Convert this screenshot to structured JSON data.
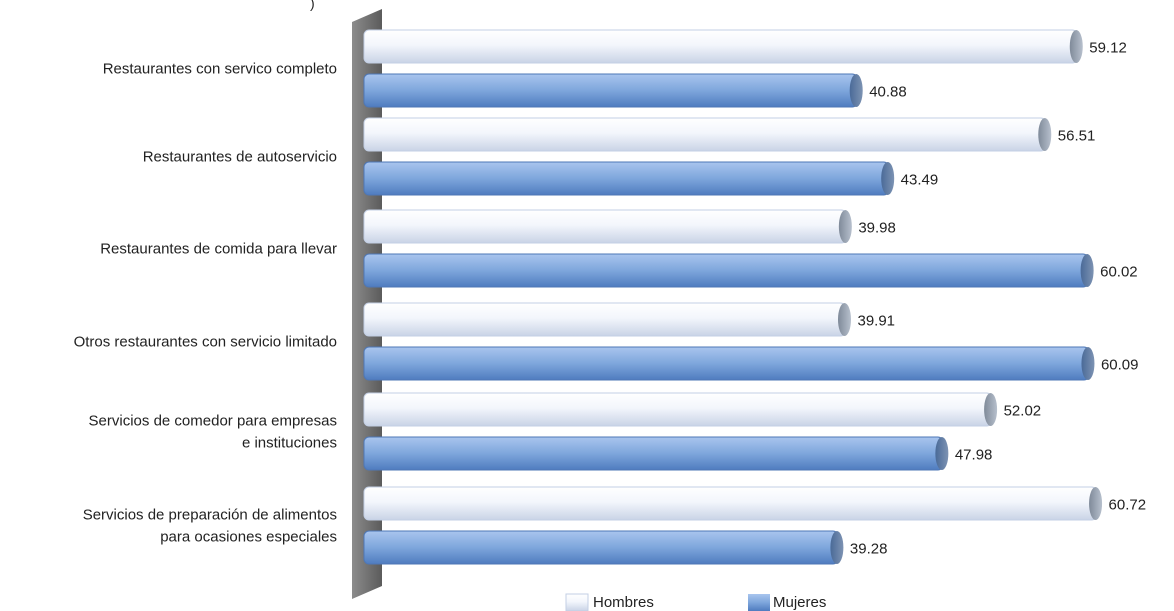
{
  "chart_data": {
    "type": "bar",
    "orientation": "horizontal",
    "top_note": ")",
    "categories": [
      [
        "Restaurantes con servico completo"
      ],
      [
        "Restaurantes de autoservicio"
      ],
      [
        "Restaurantes de comida para llevar"
      ],
      [
        "Otros restaurantes con servicio limitado"
      ],
      [
        "Servicios de comedor para empresas",
        "e instituciones"
      ],
      [
        "Servicios de preparación de alimentos",
        "para ocasiones especiales"
      ]
    ],
    "series": [
      {
        "name": "Hombres",
        "values": [
          59.12,
          56.51,
          39.98,
          39.91,
          52.02,
          60.72
        ],
        "color": "#eef2fa"
      },
      {
        "name": "Mujeres",
        "values": [
          40.88,
          43.49,
          60.02,
          60.09,
          47.98,
          39.28
        ],
        "color": "#7ea6dc"
      }
    ],
    "xlim": [
      0,
      62
    ],
    "legend": "bottom-center",
    "grid": false,
    "data_labels": true
  }
}
